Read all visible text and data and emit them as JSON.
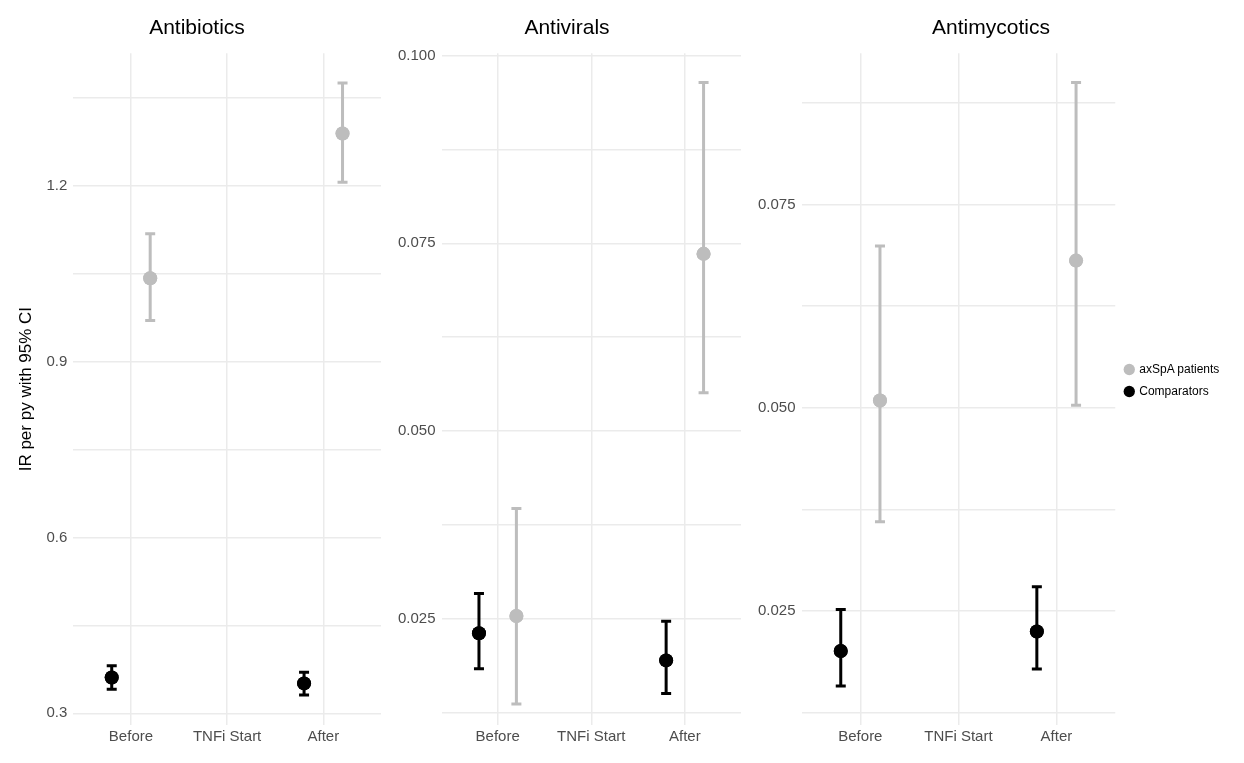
{
  "chart_data": [
    {
      "type": "scatter",
      "title": "Antibiotics",
      "ylabel": "IR per py with 95% CI",
      "categories": [
        "Before",
        "TNFi Start",
        "After"
      ],
      "series": [
        {
          "color": "#bdbdbd",
          "values": [
            1.042,
            null,
            1.289
          ],
          "errors": [
            [
              0.97,
              1.118
            ],
            null,
            [
              1.206,
              1.375
            ]
          ]
        },
        {
          "color": "#000000",
          "values": [
            0.361,
            null,
            0.351
          ],
          "errors": [
            [
              0.341,
              0.381
            ],
            null,
            [
              0.331,
              0.37
            ]
          ]
        }
      ],
      "ylim": [
        0.28,
        1.426
      ],
      "yticks": [
        0.3,
        {
          "value": 0.45,
          "label": null
        },
        0.6,
        {
          "value": 0.75,
          "label": null
        },
        0.9,
        {
          "value": 1.05,
          "label": null
        },
        1.2,
        {
          "value": 1.35,
          "label": null
        }
      ],
      "grid": true,
      "marker": "circle",
      "legend": false
    },
    {
      "type": "scatter",
      "title": "Antivirals",
      "categories": [
        "Before",
        "TNFi Start",
        "After"
      ],
      "series": [
        {
          "color": "#bdbdbd",
          "values": [
            0.0254,
            null,
            0.0736
          ],
          "errors": [
            [
              0.0137,
              0.0397
            ],
            null,
            [
              0.0551,
              0.0964
            ]
          ]
        },
        {
          "color": "#000000",
          "values": [
            0.0231,
            null,
            0.0195
          ],
          "errors": [
            [
              0.0184,
              0.0284
            ],
            null,
            [
              0.0151,
              0.0247
            ]
          ]
        }
      ],
      "ylim": [
        0.0109,
        0.1003
      ],
      "yticks": [
        {
          "value": 0.0125,
          "label": null
        },
        0.025,
        {
          "value": 0.0375,
          "label": null
        },
        {
          "value": 0.05,
          "label": "0.050"
        },
        {
          "value": 0.0625,
          "label": null
        },
        0.075,
        {
          "value": 0.0875,
          "label": null
        },
        {
          "value": 0.1,
          "label": "0.100"
        }
      ],
      "grid": true,
      "marker": "circle",
      "legend": false
    },
    {
      "type": "scatter",
      "title": "Antimycotics",
      "categories": [
        "Before",
        "TNFi Start",
        "After"
      ],
      "series": [
        {
          "name": "axSpA patients",
          "color": "#bdbdbd",
          "values": [
            0.0509,
            null,
            0.0681
          ],
          "errors": [
            [
              0.036,
              0.0699
            ],
            null,
            [
              0.0503,
              0.09
            ]
          ]
        },
        {
          "name": "Comparators",
          "color": "#000000",
          "values": [
            0.0201,
            null,
            0.0225
          ],
          "errors": [
            [
              0.0158,
              0.0252
            ],
            null,
            [
              0.0179,
              0.028
            ]
          ]
        }
      ],
      "ylim": [
        0.011,
        0.0936
      ],
      "yticks": [
        {
          "value": 0.0125,
          "label": null
        },
        0.025,
        {
          "value": 0.0375,
          "label": null
        },
        {
          "value": 0.05,
          "label": "0.050"
        },
        {
          "value": 0.0625,
          "label": null
        },
        0.075,
        {
          "value": 0.0875,
          "label": null
        }
      ],
      "grid": true,
      "marker": "circle",
      "legend": "right"
    }
  ]
}
